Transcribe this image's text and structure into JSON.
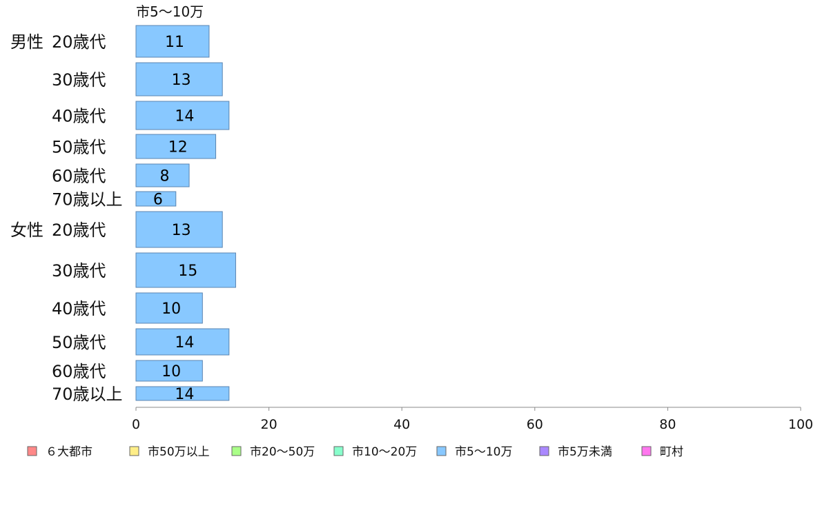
{
  "chart_data": {
    "type": "bar",
    "orientation": "horizontal",
    "series_title": "市5〜10万",
    "groups": [
      "男性",
      "女性"
    ],
    "categories": [
      {
        "group": "男性",
        "label": "20歳代"
      },
      {
        "group": "",
        "label": "30歳代"
      },
      {
        "group": "",
        "label": "40歳代"
      },
      {
        "group": "",
        "label": "50歳代"
      },
      {
        "group": "",
        "label": "60歳代"
      },
      {
        "group": "",
        "label": "70歳以上"
      },
      {
        "group": "女性",
        "label": "20歳代"
      },
      {
        "group": "",
        "label": "30歳代"
      },
      {
        "group": "",
        "label": "40歳代"
      },
      {
        "group": "",
        "label": "50歳代"
      },
      {
        "group": "",
        "label": "60歳代"
      },
      {
        "group": "",
        "label": "70歳以上"
      }
    ],
    "series": [
      {
        "name": "市5〜10万",
        "values": [
          11,
          13,
          14,
          12,
          8,
          6,
          13,
          15,
          10,
          14,
          10,
          14
        ],
        "color": "#88c8ff"
      }
    ],
    "bar_labels": [
      "11",
      "13",
      "14",
      "12",
      "8",
      "6",
      "13",
      "15",
      "10",
      "14",
      "10",
      "14"
    ],
    "xlim": [
      0,
      100
    ],
    "x_ticks": [
      0,
      20,
      40,
      60,
      80,
      100
    ],
    "x_tick_labels": [
      "0",
      "20",
      "40",
      "60",
      "80",
      "100"
    ],
    "grid": false,
    "legend_position": "bottom",
    "legend": [
      {
        "label": "６大都市",
        "color": "#ff8888"
      },
      {
        "label": "市50万以上",
        "color": "#ffee88"
      },
      {
        "label": "市20〜50万",
        "color": "#aaff88"
      },
      {
        "label": "市10〜20万",
        "color": "#88ffcc"
      },
      {
        "label": "市5〜10万",
        "color": "#88c8ff"
      },
      {
        "label": "市5万未満",
        "color": "#aa88ff"
      },
      {
        "label": "町村",
        "color": "#ff77ee"
      }
    ]
  }
}
